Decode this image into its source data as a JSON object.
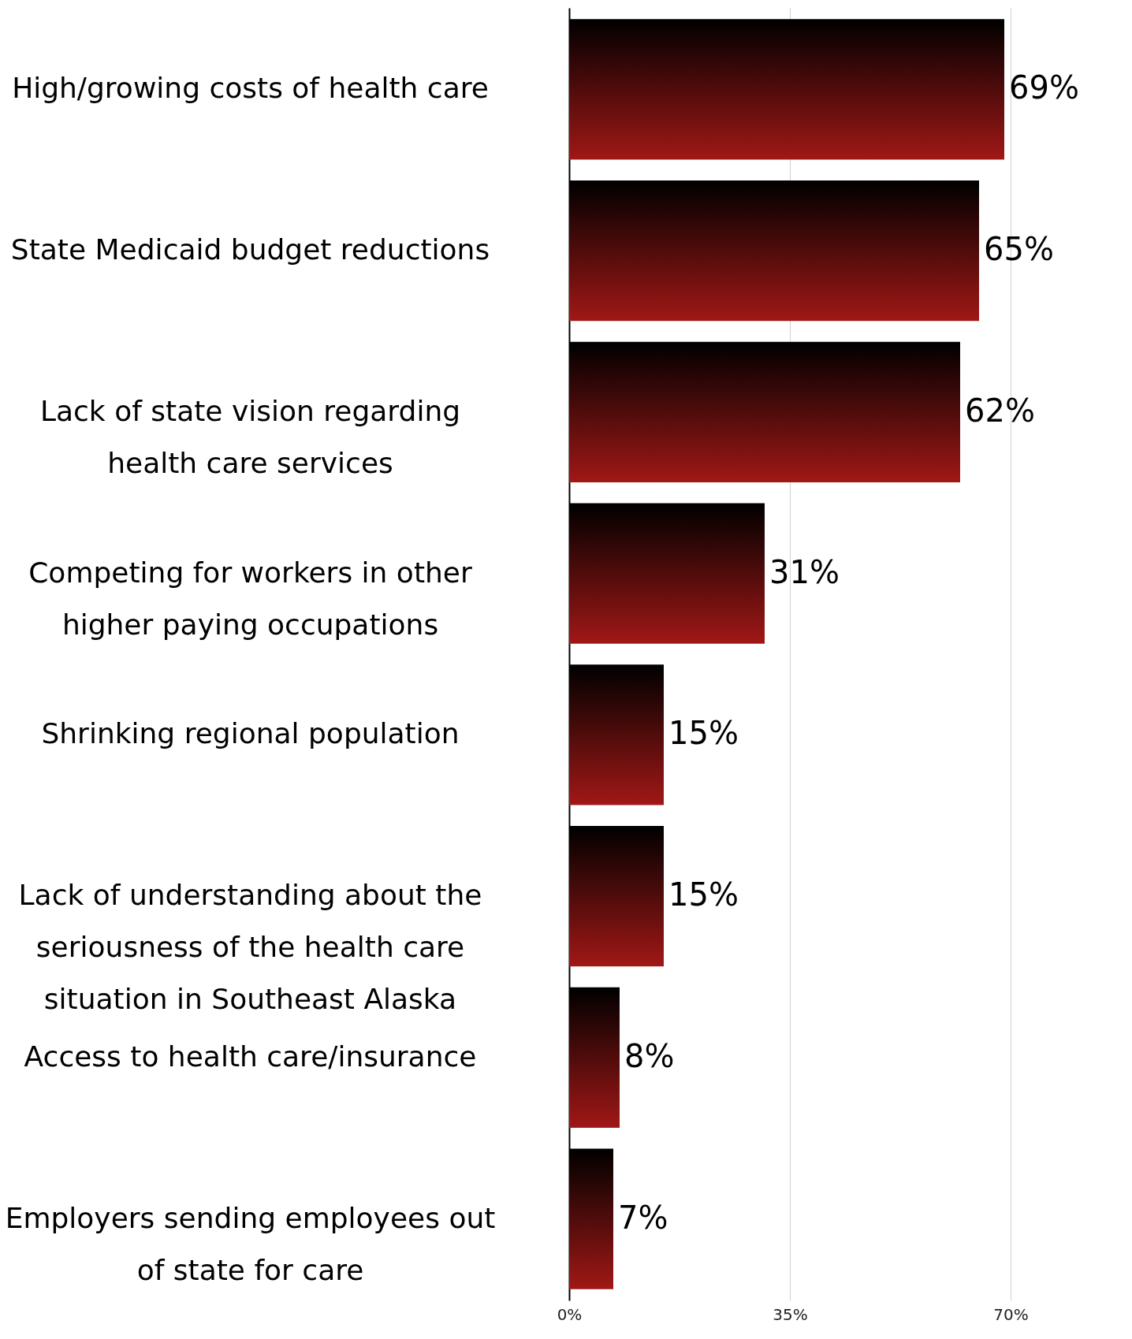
{
  "chart_data": {
    "type": "bar",
    "orientation": "horizontal",
    "categories": [
      "High/growing costs of health care",
      "State Medicaid budget reductions",
      "Lack of  state vision regarding health care services",
      "Competing for workers in other higher paying occupations",
      "Shrinking regional population",
      "Lack of understanding about the seriousness of the health care situation in Southeast Alaska",
      "Access to health care/insurance",
      "Employers sending employees out of state for care"
    ],
    "series": [
      {
        "color": "#a01816",
        "values": [
          69,
          65,
          62,
          31,
          15,
          15,
          8,
          7
        ]
      }
    ],
    "xlim": [
      0,
      70
    ],
    "xticks": [
      {
        "value": 0,
        "label": "0%"
      },
      {
        "value": 35,
        "label": "35%"
      },
      {
        "value": 70,
        "label": "70%"
      }
    ],
    "grid": "x",
    "value_labels": [
      "69%",
      "65%",
      "62%",
      "31%",
      "15%",
      "15%",
      "8%",
      "7%"
    ]
  }
}
